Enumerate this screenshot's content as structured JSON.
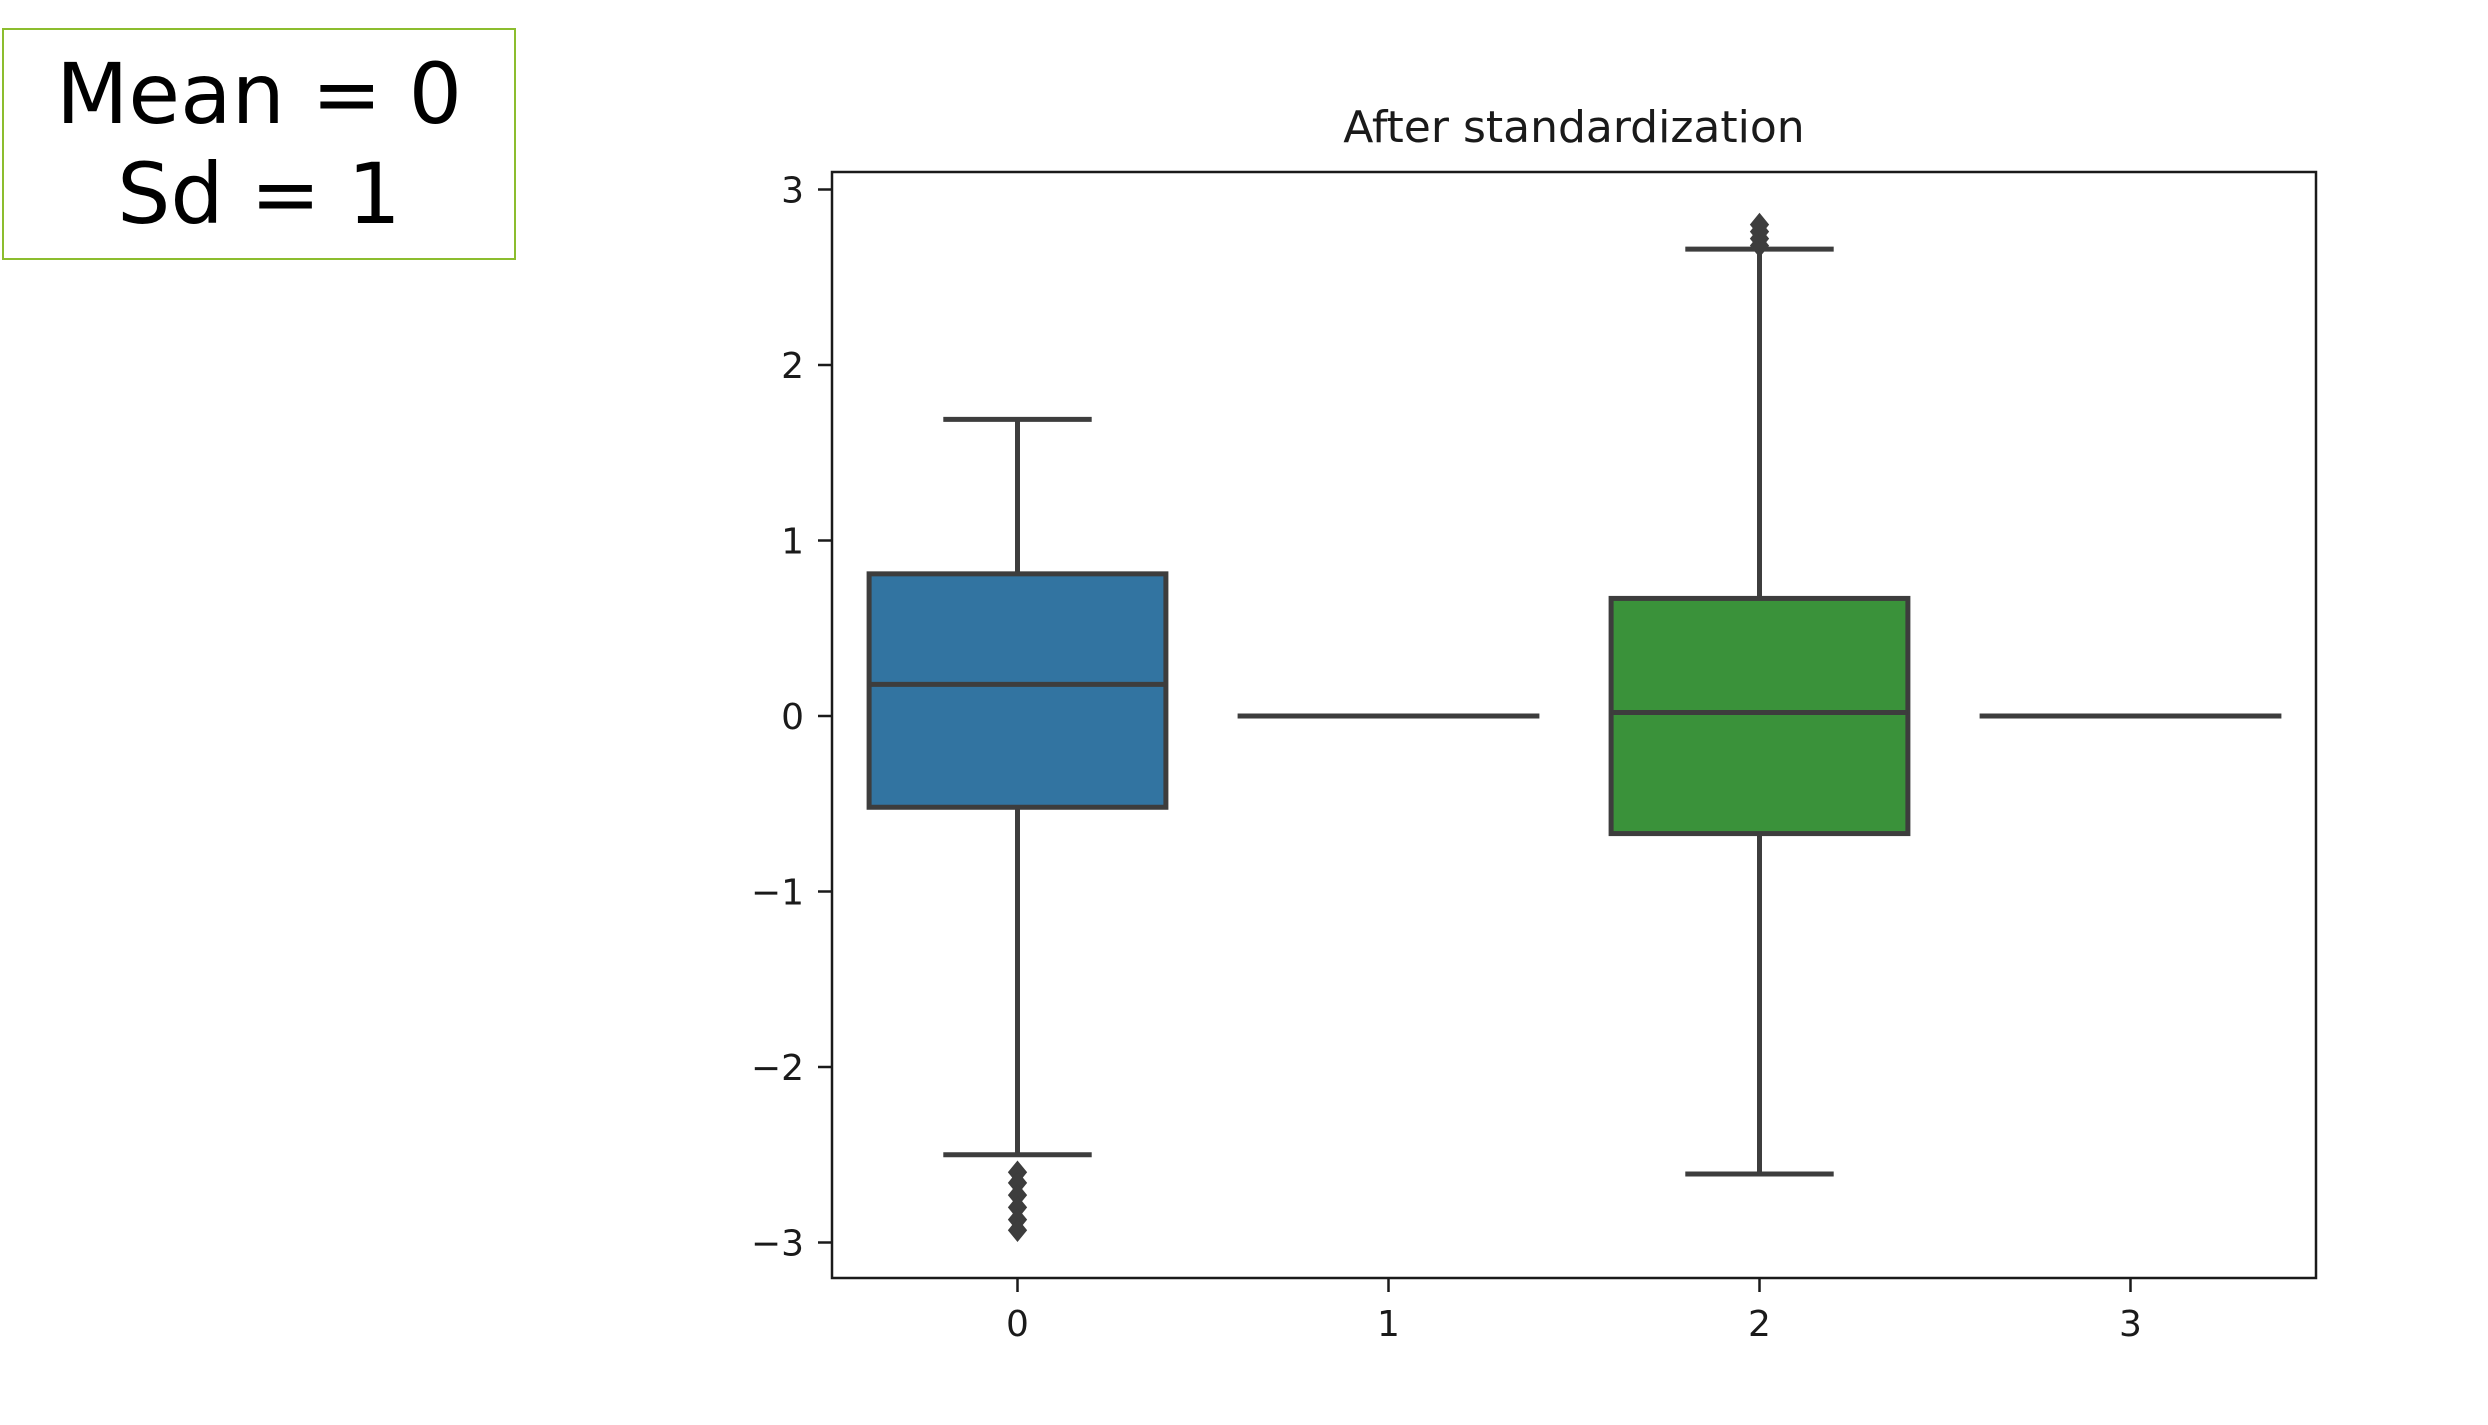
{
  "annotation": {
    "line1": "Mean = 0",
    "line2": "Sd = 1"
  },
  "chart_data": {
    "type": "box",
    "title": "After standardization",
    "xlabel": "",
    "ylabel": "",
    "categories": [
      "0",
      "1",
      "2",
      "3"
    ],
    "ylim": [
      -3.2,
      3.1
    ],
    "yticks": [
      -3,
      -2,
      -1,
      0,
      1,
      2,
      3
    ],
    "ytick_labels": [
      "−3",
      "−2",
      "−1",
      "0",
      "1",
      "2",
      "3"
    ],
    "grid": false,
    "boxes": [
      {
        "category": "0",
        "whisker_low": -2.5,
        "q1": -0.52,
        "median": 0.18,
        "q3": 0.81,
        "whisker_high": 1.69,
        "outliers": [
          -2.6,
          -2.66,
          -2.73,
          -2.8,
          -2.87,
          -2.93
        ],
        "color": "#3274a1"
      },
      {
        "category": "1",
        "whisker_low": 0,
        "q1": 0,
        "median": 0,
        "q3": 0,
        "whisker_high": 0,
        "outliers": [],
        "color": "#e1812c"
      },
      {
        "category": "2",
        "whisker_low": -2.61,
        "q1": -0.67,
        "median": 0.02,
        "q3": 0.67,
        "whisker_high": 2.66,
        "outliers": [
          2.68,
          2.72,
          2.76,
          2.8
        ],
        "color": "#3a923a"
      },
      {
        "category": "3",
        "whisker_low": 0,
        "q1": 0,
        "median": 0,
        "q3": 0,
        "whisker_high": 0,
        "outliers": [],
        "color": "#c03d3e"
      }
    ],
    "line_color": "#3d3d3d"
  }
}
